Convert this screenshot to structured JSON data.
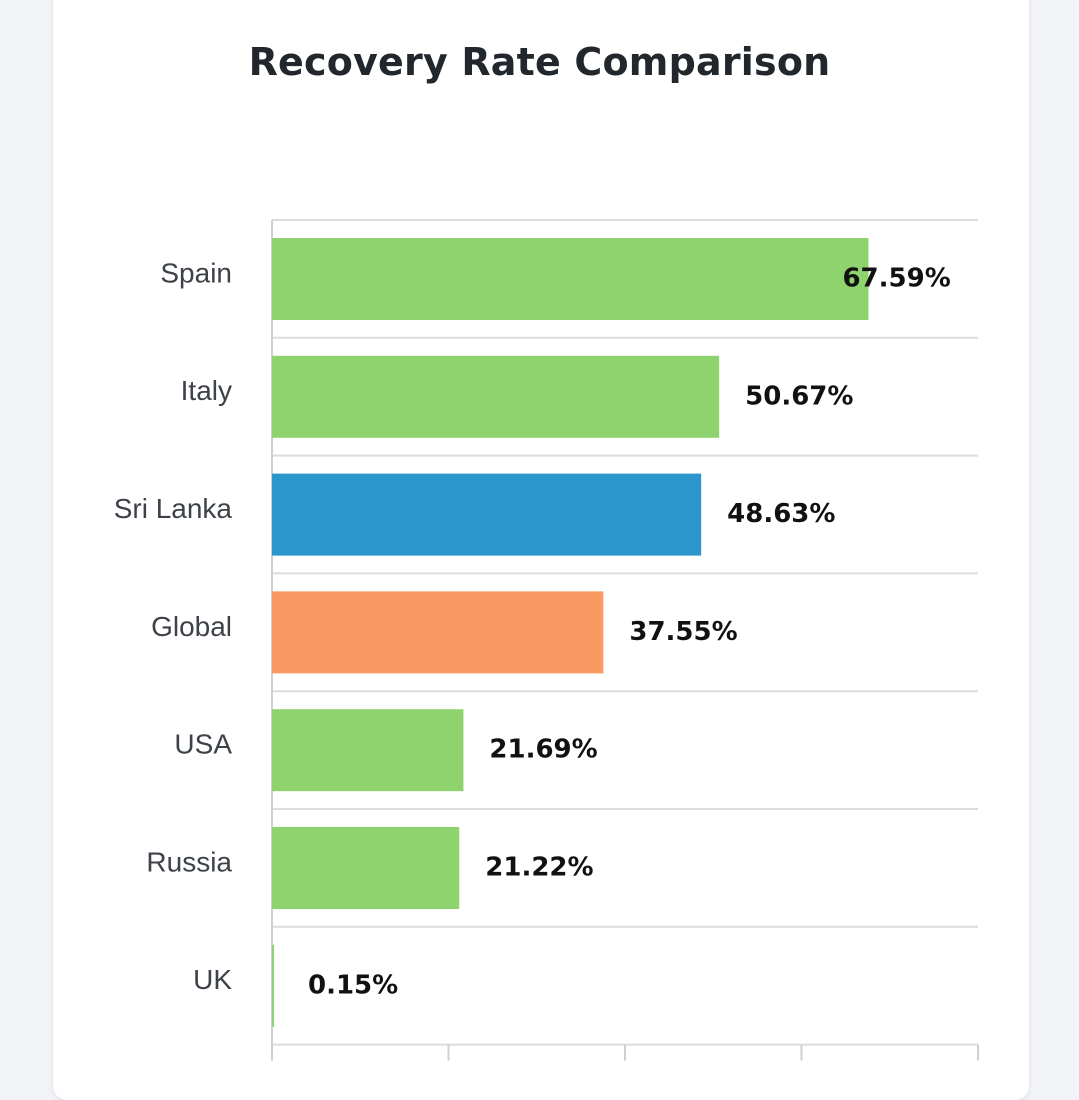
{
  "colors": {
    "page_bg": "#f1f3f6",
    "card_bg": "#ffffff",
    "default_bar": "#8fd36e",
    "highlight_sri_lanka": "#2b96cc",
    "highlight_global": "#f89a62",
    "grid": "#dcdcdc",
    "axis": "#d0d0d0"
  },
  "chart_data": {
    "type": "bar",
    "orientation": "horizontal",
    "title": "Recovery Rate Comparison",
    "categories": [
      "Spain",
      "Italy",
      "Sri Lanka",
      "Global",
      "USA",
      "Russia",
      "UK"
    ],
    "values": [
      67.59,
      50.67,
      48.63,
      37.55,
      21.69,
      21.22,
      0.15
    ],
    "value_labels": [
      "67.59%",
      "50.67%",
      "48.63%",
      "37.55%",
      "21.69%",
      "21.22%",
      "0.15%"
    ],
    "bar_colors": [
      "#8fd36e",
      "#8fd36e",
      "#2b96cc",
      "#f89a62",
      "#8fd36e",
      "#8fd36e",
      "#8fd36e"
    ],
    "xlim": [
      0,
      80
    ],
    "x_ticks": [
      0,
      20,
      40,
      60,
      80
    ],
    "xlabel": "",
    "ylabel": "",
    "grid": true,
    "legend": "none"
  }
}
